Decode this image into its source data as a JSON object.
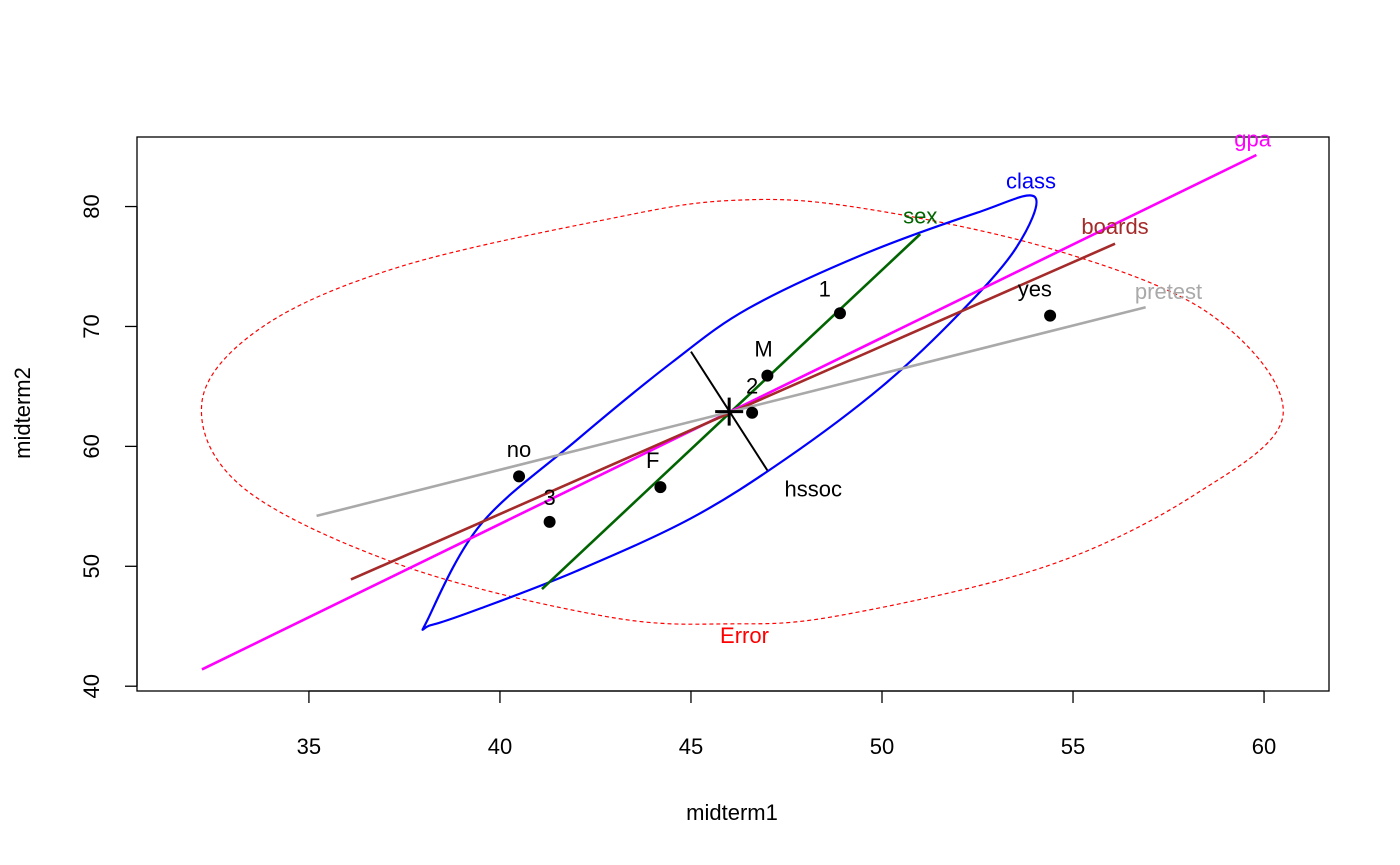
{
  "chart_data": {
    "type": "scatter",
    "title": "",
    "xlabel": "midterm1",
    "ylabel": "midterm2",
    "xlim": [
      30.5,
      61.7
    ],
    "ylim": [
      39.6,
      85.8
    ],
    "x_ticks": [
      35,
      40,
      45,
      50,
      55,
      60
    ],
    "y_ticks": [
      40,
      50,
      60,
      70,
      80
    ],
    "x_tick_labels": [
      "35",
      "40",
      "45",
      "50",
      "55",
      "60"
    ],
    "y_tick_labels": [
      "40",
      "50",
      "60",
      "70",
      "80"
    ],
    "grid": false,
    "center": {
      "x": 46.0,
      "y": 62.9
    },
    "error_ellipse": {
      "label": "Error",
      "color": "#ff0000",
      "points": [
        [
          32.2,
          63.7
        ],
        [
          33.8,
          70.0
        ],
        [
          37.4,
          75.0
        ],
        [
          42.9,
          79.0
        ],
        [
          46.0,
          80.5
        ],
        [
          49.2,
          80.0
        ],
        [
          54.4,
          76.5
        ],
        [
          58.6,
          71.0
        ],
        [
          60.5,
          62.7
        ],
        [
          58.2,
          56.0
        ],
        [
          54.3,
          50.0
        ],
        [
          48.9,
          45.9
        ],
        [
          46.0,
          45.2
        ],
        [
          42.8,
          45.8
        ],
        [
          37.5,
          50.0
        ],
        [
          33.3,
          56.5
        ]
      ],
      "label_pos": {
        "x": 46.4,
        "y": 43.6
      }
    },
    "terms": [
      {
        "name": "class",
        "color": "#0000ff",
        "shape": "ellipse",
        "points": [
          [
            38.2,
            45.1
          ],
          [
            39.5,
            46.5
          ],
          [
            42.0,
            49.6
          ],
          [
            45.0,
            54.0
          ],
          [
            47.5,
            59.0
          ],
          [
            50.0,
            65.0
          ],
          [
            52.0,
            71.0
          ],
          [
            53.5,
            76.5
          ],
          [
            54.0,
            80.8
          ],
          [
            52.5,
            79.5
          ],
          [
            49.5,
            76.0
          ],
          [
            46.5,
            71.5
          ],
          [
            44.5,
            67.0
          ],
          [
            42.0,
            60.5
          ],
          [
            39.5,
            53.5
          ],
          [
            38.1,
            45.5
          ]
        ],
        "label_pos": {
          "x": 53.9,
          "y": 81.5
        }
      },
      {
        "name": "sex",
        "color": "#006400",
        "shape": "line",
        "points": [
          [
            41.1,
            48.1
          ],
          [
            51.0,
            77.7
          ]
        ],
        "label_pos": {
          "x": 51.0,
          "y": 78.6
        }
      },
      {
        "name": "gpa",
        "color": "#ff00ff",
        "shape": "line",
        "points": [
          [
            32.2,
            41.4
          ],
          [
            59.8,
            84.3
          ]
        ],
        "label_pos": {
          "x": 59.7,
          "y": 85.0
        }
      },
      {
        "name": "boards",
        "color": "#a52a2a",
        "shape": "line",
        "points": [
          [
            36.1,
            48.9
          ],
          [
            56.1,
            76.9
          ]
        ],
        "label_pos": {
          "x": 56.1,
          "y": 77.7
        }
      },
      {
        "name": "pretest",
        "color": "#a9a9a9",
        "shape": "line",
        "points": [
          [
            35.2,
            54.2
          ],
          [
            56.9,
            71.6
          ]
        ],
        "label_pos": {
          "x": 57.5,
          "y": 72.3
        }
      },
      {
        "name": "hssoc",
        "color": "#000000",
        "shape": "line",
        "points": [
          [
            45.0,
            67.9
          ],
          [
            47.0,
            58.0
          ]
        ],
        "label_pos": {
          "x": 48.2,
          "y": 55.8
        }
      }
    ],
    "points": [
      {
        "label": "1",
        "x": 48.9,
        "y": 71.1,
        "label_pos": {
          "x": 48.5,
          "y": 72.5
        }
      },
      {
        "label": "2",
        "x": 46.6,
        "y": 62.8,
        "label_pos": {
          "x": 46.6,
          "y": 64.4
        }
      },
      {
        "label": "3",
        "x": 41.3,
        "y": 53.7,
        "label_pos": {
          "x": 41.3,
          "y": 55.1
        }
      },
      {
        "label": "M",
        "x": 47.0,
        "y": 65.9,
        "label_pos": {
          "x": 46.9,
          "y": 67.5
        }
      },
      {
        "label": "F",
        "x": 44.2,
        "y": 56.6,
        "label_pos": {
          "x": 44.0,
          "y": 58.2
        }
      },
      {
        "label": "no",
        "x": 40.5,
        "y": 57.5,
        "label_pos": {
          "x": 40.5,
          "y": 59.1
        }
      },
      {
        "label": "yes",
        "x": 54.4,
        "y": 70.9,
        "label_pos": {
          "x": 54.0,
          "y": 72.5
        }
      }
    ]
  }
}
